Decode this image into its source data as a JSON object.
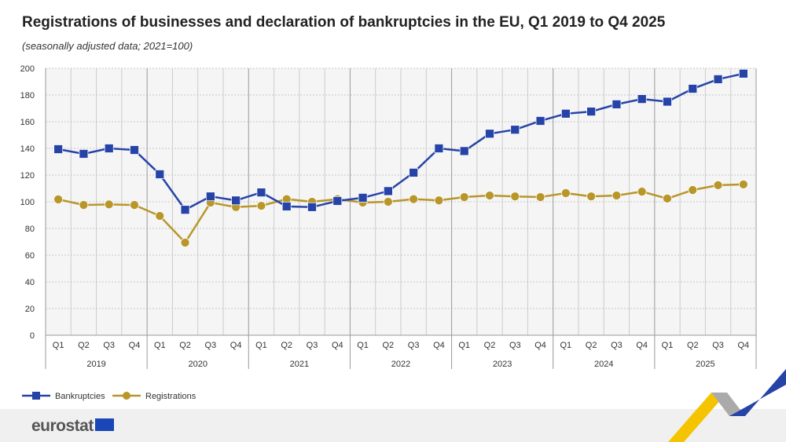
{
  "chart_data": {
    "type": "line",
    "title": "Registrations of businesses and declaration of bankruptcies in the EU, Q1 2019 to Q4 2025",
    "subtitle": "(seasonally adjusted data; 2021=100)",
    "years": [
      "2019",
      "2020",
      "2021",
      "2022",
      "2023",
      "2024",
      "2025"
    ],
    "quarters": [
      "Q1",
      "Q2",
      "Q3",
      "Q4"
    ],
    "ylim": [
      0,
      200
    ],
    "yticks": [
      0,
      20,
      40,
      60,
      80,
      100,
      120,
      140,
      160,
      180,
      200
    ],
    "grid": true,
    "legend_position": "bottom-left",
    "series": [
      {
        "name": "Bankruptcies",
        "color": "#2644a8",
        "marker": "square",
        "values": [
          139.4,
          135.9,
          140,
          138.8,
          120.6,
          94,
          104,
          101,
          107,
          96.5,
          96,
          100.6,
          103,
          108,
          121.8,
          140,
          138,
          151,
          154,
          160.6,
          166,
          167.6,
          173,
          177,
          175,
          184.7,
          191.8,
          196
        ]
      },
      {
        "name": "Registrations",
        "color": "#b8962a",
        "marker": "circle",
        "values": [
          101.8,
          97.6,
          98,
          97.6,
          89.4,
          69.4,
          99.4,
          96,
          97,
          102,
          100,
          102,
          99.4,
          100,
          102,
          101,
          103.5,
          104.7,
          104,
          103.5,
          106.5,
          104,
          104.7,
          107.6,
          102.4,
          108.8,
          112.4,
          113
        ]
      }
    ]
  },
  "footer": {
    "logo": "eurostat"
  }
}
